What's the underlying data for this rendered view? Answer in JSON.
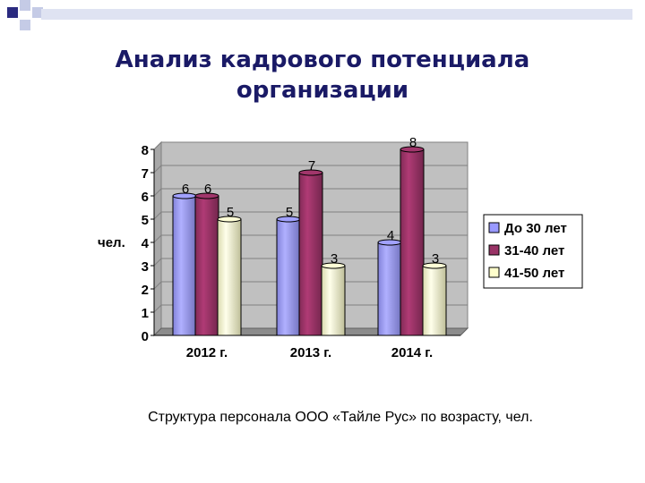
{
  "title_line1": "Анализ кадрового потенциала",
  "title_line2": "организации",
  "caption": "Структура персонала ООО «Тайле Рус» по возрасту, чел.",
  "colors": {
    "title": "#1a1a66",
    "decor_dark": "#2b2b80",
    "decor_light": "#c5cbe6",
    "plot_bg": "#c0c0c0",
    "grid": "#808080"
  },
  "chart_data": {
    "type": "bar",
    "categories": [
      "2012 г.",
      "2013 г.",
      "2014 г."
    ],
    "ylabel": "чел.",
    "ylim": [
      0,
      8
    ],
    "yticks": [
      0,
      1,
      2,
      3,
      4,
      5,
      6,
      7,
      8
    ],
    "grid": true,
    "legend_position": "right",
    "bar_style": "3d-cylinder",
    "series": [
      {
        "name": "До 30 лет",
        "values": [
          6,
          5,
          4
        ],
        "color": "#9999ff"
      },
      {
        "name": "31-40 лет",
        "values": [
          6,
          7,
          8
        ],
        "color": "#993366"
      },
      {
        "name": "41-50 лет",
        "values": [
          5,
          3,
          3
        ],
        "color": "#ffffcc"
      }
    ]
  }
}
